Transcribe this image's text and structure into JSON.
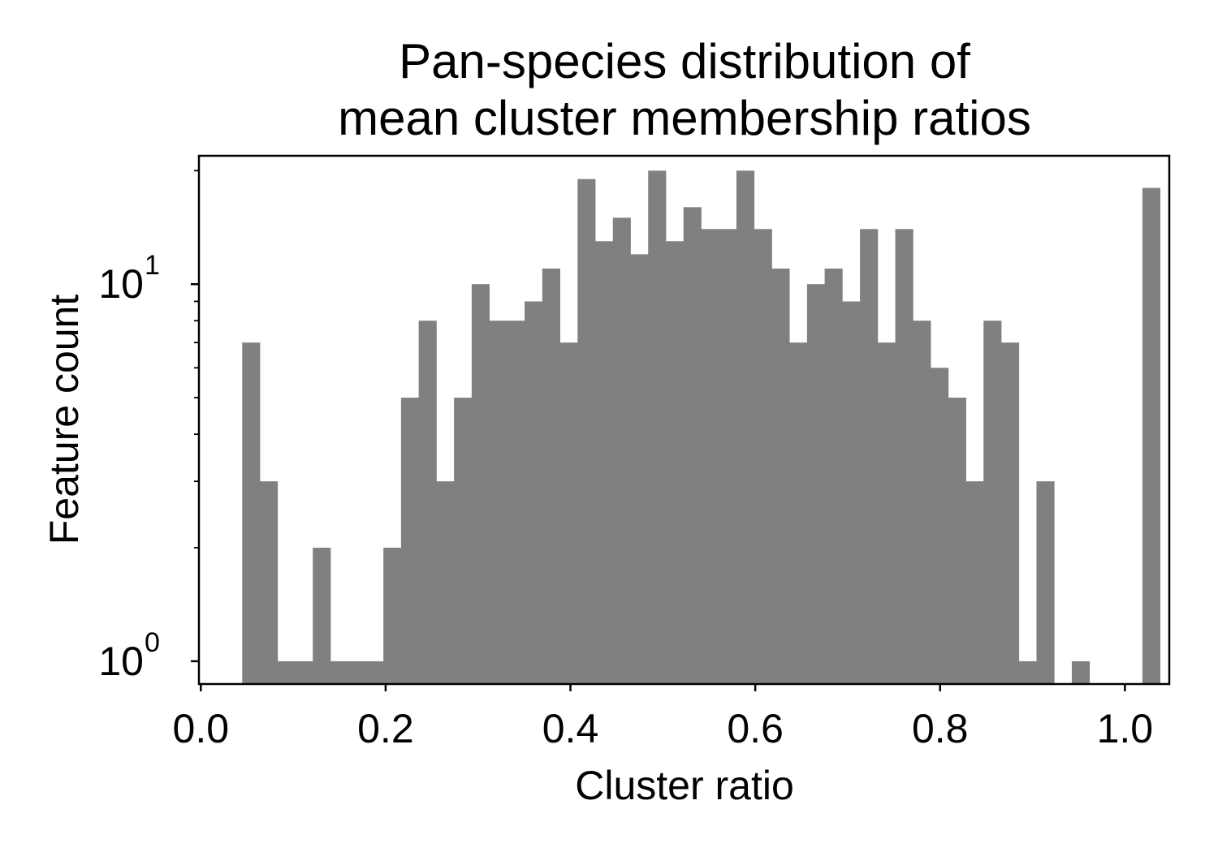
{
  "chart_data": {
    "type": "bar",
    "title": [
      "Pan-species distribution of",
      "mean cluster membership ratios"
    ],
    "xlabel": "Cluster ratio",
    "ylabel": "Feature count",
    "yscale": "log",
    "xlim": [
      -0.002,
      1.048
    ],
    "ylim": [
      0.87,
      21.9
    ],
    "xticks": [
      {
        "value": 0.0,
        "label": "0.0"
      },
      {
        "value": 0.2,
        "label": "0.2"
      },
      {
        "value": 0.4,
        "label": "0.4"
      },
      {
        "value": 0.6,
        "label": "0.6"
      },
      {
        "value": 0.8,
        "label": "0.8"
      },
      {
        "value": 1.0,
        "label": "1.0"
      }
    ],
    "yticks": [
      {
        "value": 1,
        "base": "10",
        "exp": "0"
      },
      {
        "value": 10,
        "base": "10",
        "exp": "1"
      }
    ],
    "bin_width": 0.0191,
    "bin_start": 0.0448,
    "values": [
      7,
      3,
      1,
      1,
      2,
      1,
      1,
      1,
      2,
      5,
      8,
      3,
      5,
      10,
      8,
      8,
      9,
      11,
      7,
      19,
      13,
      15,
      12,
      20,
      13,
      16,
      14,
      14,
      20,
      14,
      11,
      7,
      10,
      11,
      9,
      14,
      7,
      14,
      8,
      6,
      5,
      3,
      8,
      7,
      1,
      3,
      0,
      1,
      0,
      0,
      0,
      18
    ],
    "bar_color": "#808080",
    "grid": false
  }
}
